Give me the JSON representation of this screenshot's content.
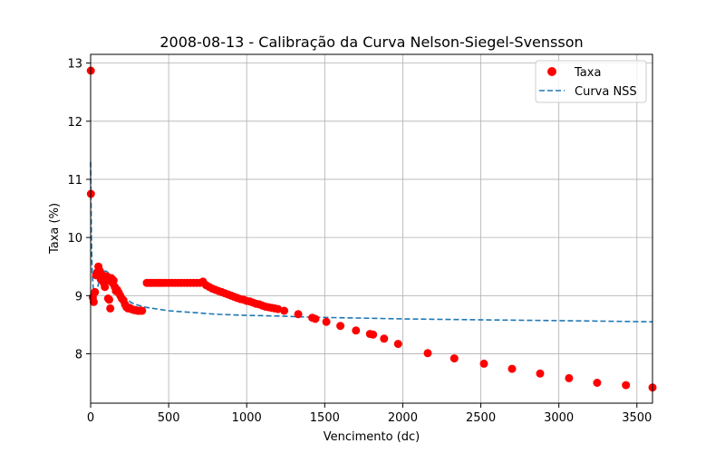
{
  "chart_data": {
    "type": "scatter",
    "title": "2008-08-13 - Calibração da Curva Nelson-Siegel-Svensson",
    "xlabel": "Vencimento (dc)",
    "ylabel": "Taxa (%)",
    "xlim": [
      0,
      3600
    ],
    "ylim": [
      7.15,
      13.15
    ],
    "xticks": [
      0,
      500,
      1000,
      1500,
      2000,
      2500,
      3000,
      3500
    ],
    "yticks": [
      8,
      9,
      10,
      11,
      12,
      13
    ],
    "grid": true,
    "legend_position": "top-right",
    "colors": {
      "points": "#ff0000",
      "curve": "#1f77b4"
    },
    "series": [
      {
        "name": "Taxa",
        "kind": "scatter",
        "x": [
          1,
          2,
          14,
          20,
          28,
          35,
          42,
          50,
          55,
          60,
          65,
          70,
          77,
          84,
          91,
          98,
          105,
          112,
          119,
          126,
          133,
          140,
          147,
          155,
          162,
          170,
          180,
          190,
          200,
          210,
          220,
          230,
          240,
          250,
          260,
          270,
          280,
          290,
          300,
          310,
          320,
          330,
          360,
          375,
          390,
          405,
          420,
          435,
          450,
          465,
          480,
          500,
          520,
          540,
          560,
          580,
          600,
          620,
          640,
          660,
          680,
          700,
          720,
          740,
          760,
          780,
          800,
          820,
          840,
          860,
          880,
          900,
          920,
          940,
          960,
          980,
          1000,
          1020,
          1040,
          1060,
          1080,
          1100,
          1120,
          1140,
          1160,
          1180,
          1200,
          1240,
          1330,
          1420,
          1440,
          1510,
          1600,
          1700,
          1790,
          1810,
          1880,
          1970,
          2160,
          2330,
          2520,
          2700,
          2880,
          3065,
          3245,
          3430,
          3600
        ],
        "y": [
          12.87,
          10.75,
          8.97,
          8.89,
          9.06,
          9.35,
          9.4,
          9.5,
          9.36,
          9.42,
          9.28,
          9.3,
          9.35,
          9.22,
          9.15,
          9.25,
          9.33,
          8.95,
          8.93,
          8.78,
          9.3,
          9.22,
          9.26,
          9.15,
          9.08,
          9.1,
          9.05,
          9.0,
          8.95,
          8.92,
          8.85,
          8.8,
          8.78,
          8.79,
          8.77,
          8.76,
          8.75,
          8.75,
          8.74,
          8.74,
          8.74,
          8.74,
          9.22,
          9.22,
          9.22,
          9.22,
          9.22,
          9.22,
          9.22,
          9.22,
          9.22,
          9.22,
          9.22,
          9.22,
          9.22,
          9.22,
          9.22,
          9.22,
          9.22,
          9.22,
          9.22,
          9.22,
          9.24,
          9.18,
          9.15,
          9.12,
          9.1,
          9.08,
          9.06,
          9.04,
          9.02,
          9.0,
          8.98,
          8.96,
          8.94,
          8.93,
          8.91,
          8.9,
          8.88,
          8.86,
          8.85,
          8.83,
          8.81,
          8.8,
          8.79,
          8.78,
          8.77,
          8.74,
          8.68,
          8.62,
          8.6,
          8.55,
          8.48,
          8.4,
          8.34,
          8.33,
          8.26,
          8.17,
          8.01,
          7.92,
          7.83,
          7.74,
          7.66,
          7.58,
          7.5,
          7.46,
          7.42
        ]
      },
      {
        "name": "Curva NSS",
        "kind": "line-dashed",
        "x": [
          0,
          2,
          5,
          10,
          20,
          30,
          40,
          50,
          60,
          70,
          80,
          90,
          100,
          120,
          140,
          160,
          180,
          200,
          230,
          260,
          300,
          350,
          400,
          450,
          500,
          600,
          700,
          800,
          900,
          1000,
          1200,
          1400,
          1600,
          1800,
          2000,
          2300,
          2600,
          3000,
          3300,
          3600
        ],
        "y": [
          11.3,
          10.8,
          10.0,
          9.4,
          9.02,
          8.97,
          9.08,
          9.2,
          9.3,
          9.36,
          9.4,
          9.42,
          9.42,
          9.38,
          9.3,
          9.2,
          9.1,
          9.02,
          8.94,
          8.88,
          8.84,
          8.8,
          8.78,
          8.76,
          8.74,
          8.72,
          8.7,
          8.68,
          8.67,
          8.66,
          8.65,
          8.63,
          8.62,
          8.61,
          8.6,
          8.59,
          8.58,
          8.57,
          8.56,
          8.55
        ]
      }
    ]
  }
}
